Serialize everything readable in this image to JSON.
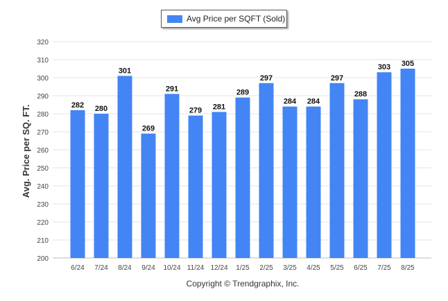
{
  "chart_data": {
    "type": "bar",
    "title": "",
    "xlabel": "",
    "ylabel": "Avg. Price per SQ. FT.",
    "categories": [
      "6/24",
      "7/24",
      "8/24",
      "9/24",
      "10/24",
      "11/24",
      "12/24",
      "1/25",
      "2/25",
      "3/25",
      "4/25",
      "5/25",
      "6/25",
      "7/25",
      "8/25"
    ],
    "series": [
      {
        "name": "Avg Price per SQFT (Sold)",
        "values": [
          282,
          280,
          301,
          269,
          291,
          279,
          281,
          289,
          297,
          284,
          284,
          297,
          288,
          303,
          305
        ]
      }
    ],
    "ylim": [
      200,
      320
    ],
    "yticks": [
      200,
      210,
      220,
      230,
      240,
      250,
      260,
      270,
      280,
      290,
      300,
      310,
      320
    ],
    "grid": true,
    "legend": "top-center",
    "bar_color": "#4385f4",
    "data_labels": true
  },
  "footer": {
    "copyright": "Copyright © Trendgraphix, Inc."
  }
}
